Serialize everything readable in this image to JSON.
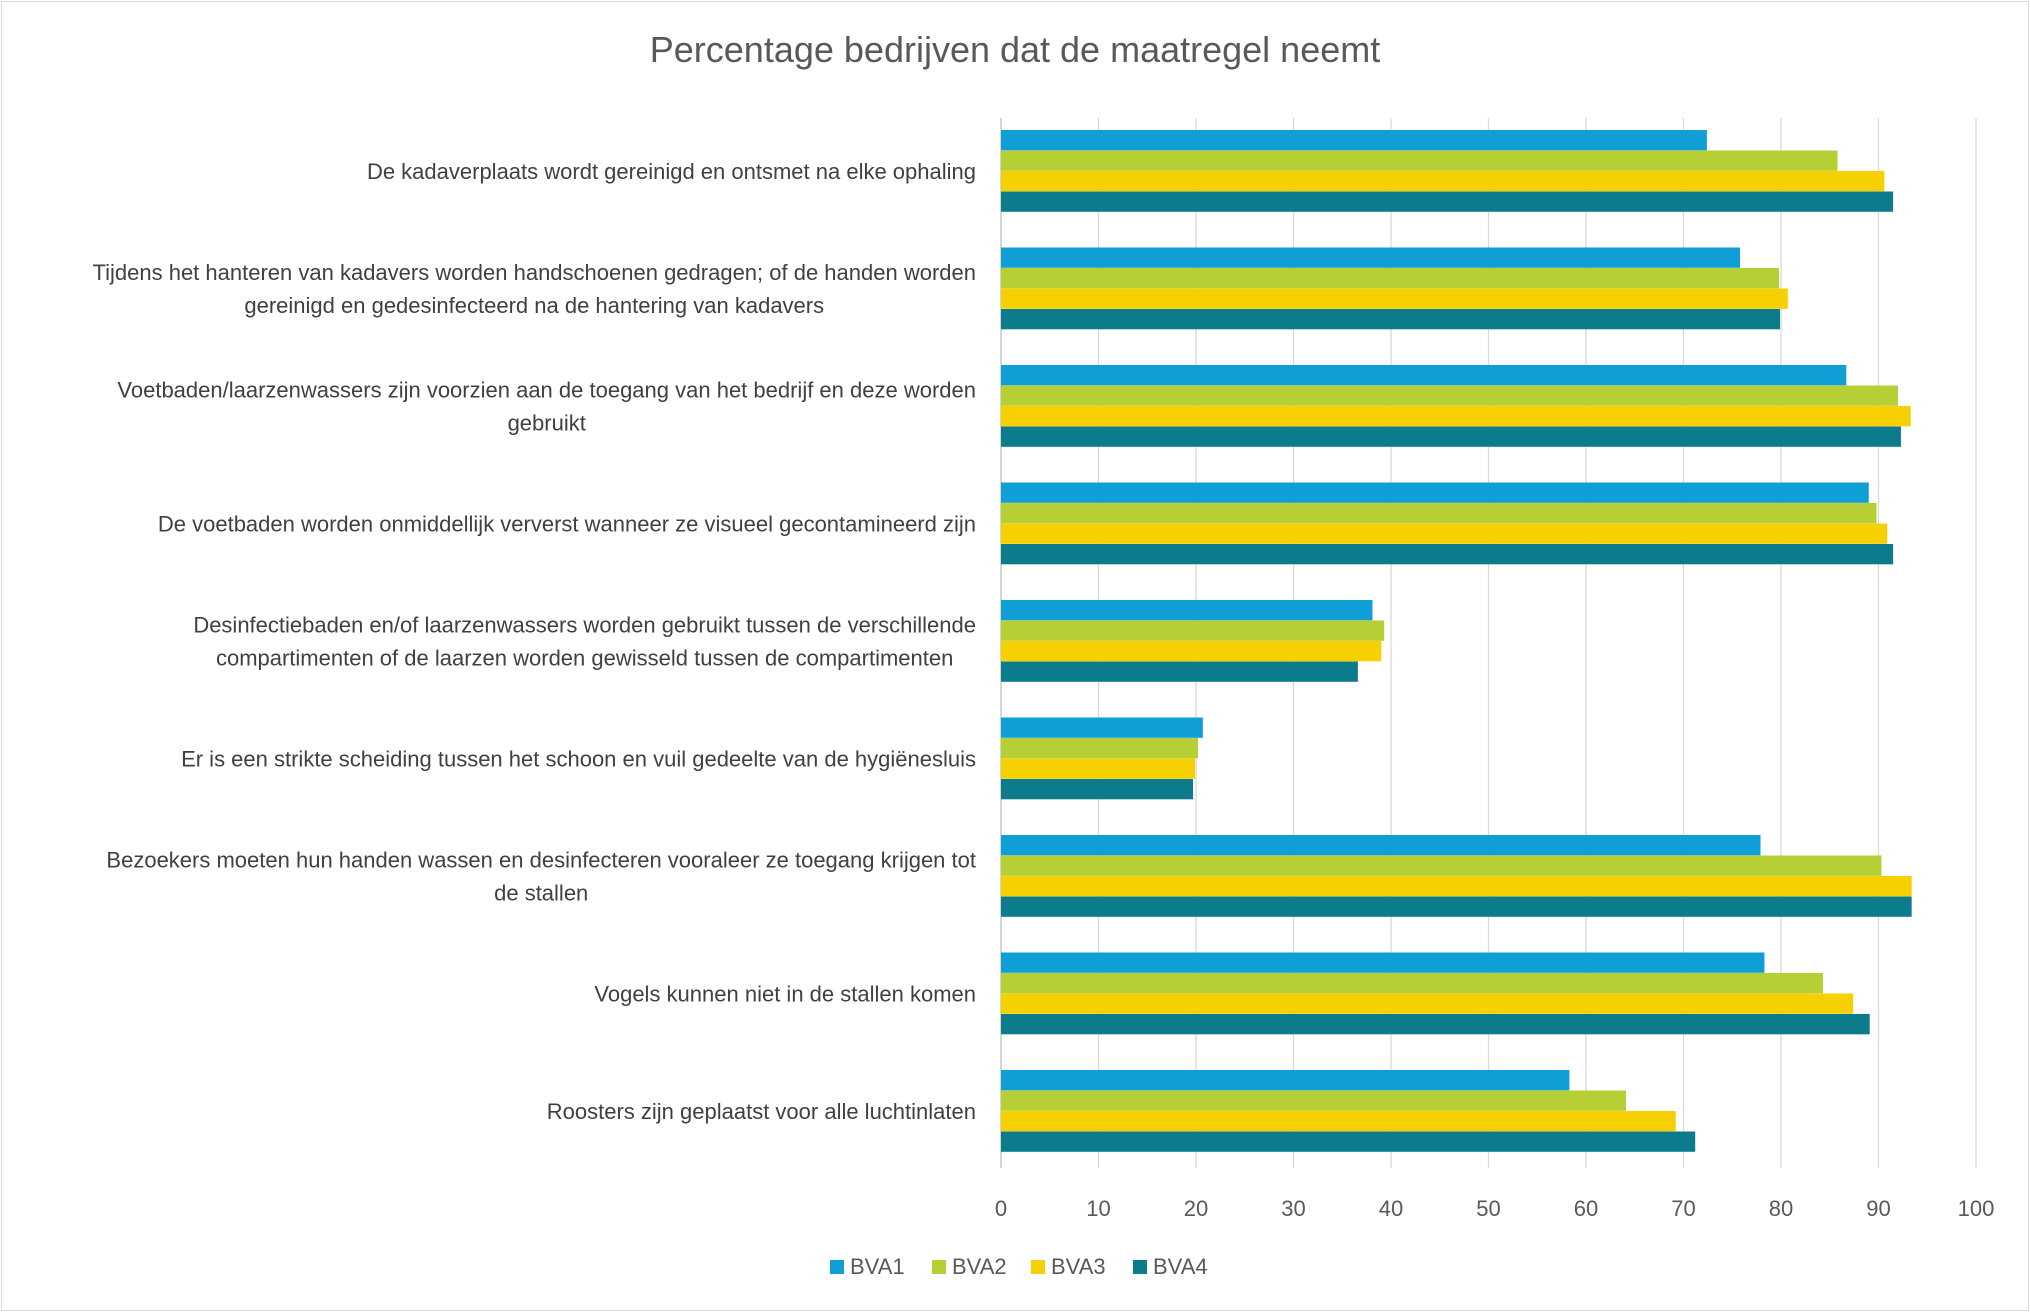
{
  "chart_data": {
    "type": "bar",
    "orientation": "horizontal",
    "title": "Percentage bedrijven dat de maatregel neemt",
    "xlabel": "",
    "ylabel": "",
    "xlim": [
      0,
      100
    ],
    "ticks": [
      0,
      10,
      20,
      30,
      40,
      50,
      60,
      70,
      80,
      90,
      100
    ],
    "grid": true,
    "legend_position": "bottom",
    "categories": [
      [
        "De kadaverplaats wordt gereinigd en ontsmet na elke ophaling"
      ],
      [
        "Tijdens het hanteren van kadavers worden handschoenen gedragen; of de handen worden",
        "gereinigd en gedesinfecteerd na de hantering van kadavers"
      ],
      [
        "Voetbaden/laarzenwassers zijn voorzien aan de toegang van het bedrijf en deze worden",
        "gebruikt"
      ],
      [
        "De voetbaden worden onmiddellijk ververst wanneer ze visueel gecontamineerd zijn"
      ],
      [
        "Desinfectiebaden en/of laarzenwassers worden gebruikt tussen de verschillende",
        "compartimenten of de laarzen worden gewisseld tussen de compartimenten"
      ],
      [
        "Er is een strikte scheiding tussen het schoon en vuil gedeelte van de hygiënesluis"
      ],
      [
        "Bezoekers moeten hun handen wassen en desinfecteren vooraleer ze toegang krijgen tot",
        "de stallen"
      ],
      [
        "Vogels kunnen niet in de stallen komen"
      ],
      [
        "Roosters zijn geplaatst voor alle luchtinlaten"
      ]
    ],
    "series": [
      {
        "name": "BVA1",
        "color": "#0f9ed5",
        "values": [
          72.4,
          75.8,
          86.7,
          89.0,
          38.1,
          20.7,
          77.9,
          78.3,
          58.3
        ]
      },
      {
        "name": "BVA2",
        "color": "#b5cf35",
        "values": [
          85.8,
          79.8,
          92.0,
          89.8,
          39.3,
          20.2,
          90.3,
          84.3,
          64.1
        ]
      },
      {
        "name": "BVA3",
        "color": "#f6d000",
        "values": [
          90.6,
          80.7,
          93.3,
          90.9,
          39.0,
          19.9,
          93.4,
          87.4,
          69.2
        ]
      },
      {
        "name": "BVA4",
        "color": "#0c7b8b",
        "values": [
          91.5,
          79.9,
          92.3,
          91.5,
          36.6,
          19.7,
          93.4,
          89.1,
          71.2
        ]
      }
    ]
  }
}
